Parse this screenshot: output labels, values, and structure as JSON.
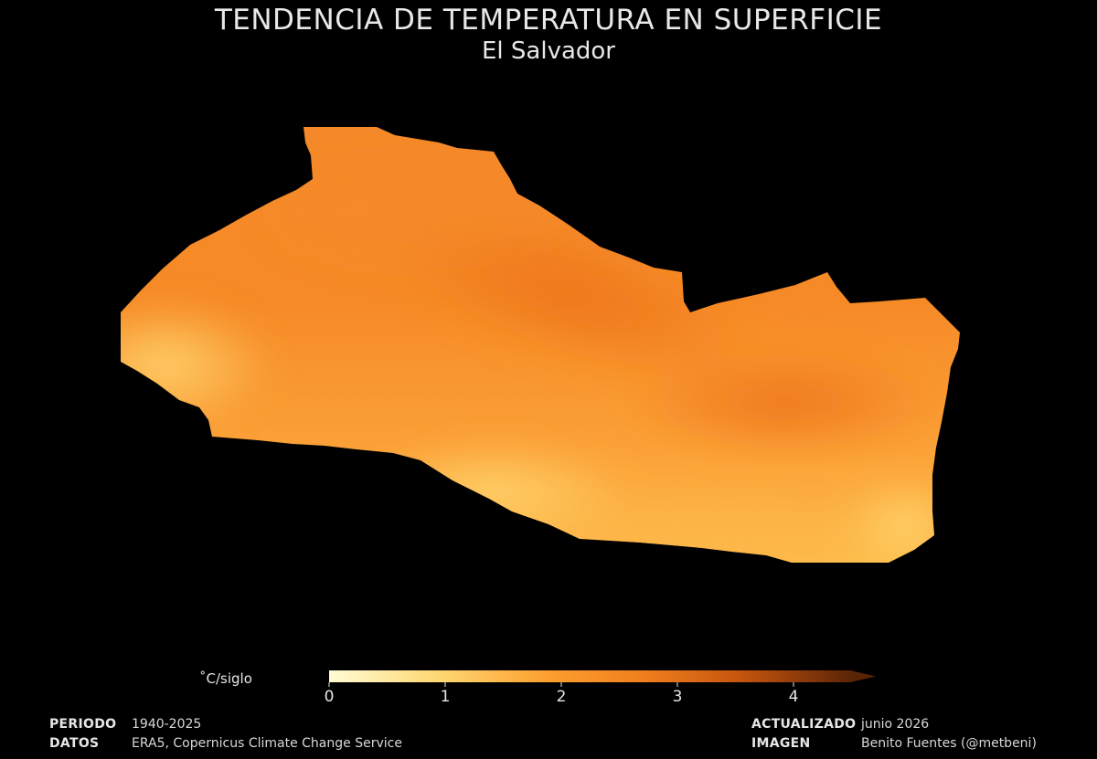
{
  "header": {
    "title": "TENDENCIA DE TEMPERATURA EN SUPERFICIE",
    "subtitle": "El Salvador"
  },
  "colorbar": {
    "unit": "˚C/siglo",
    "ticks": [
      "0",
      "1",
      "2",
      "3",
      "4"
    ],
    "range": [
      0,
      4.5
    ],
    "extend": "max",
    "colors": [
      "#fffbd6",
      "#fed976",
      "#fd9f2e",
      "#f07f1e",
      "#d15e0f",
      "#8e3b0a",
      "#5a2407"
    ]
  },
  "footer": {
    "periodo_label": "PERIODO",
    "periodo_value": "1940-2025",
    "datos_label": "DATOS",
    "datos_value": "ERA5, Copernicus Climate Change Service",
    "actualizado_label": "ACTUALIZADO",
    "actualizado_value": "junio 2026",
    "imagen_label": "IMAGEN",
    "imagen_value": "Benito Fuentes (@metbeni)"
  },
  "map": {
    "region": "El Salvador",
    "variable": "surface temperature trend",
    "approx_trend_range": [
      1.6,
      2.7
    ]
  }
}
